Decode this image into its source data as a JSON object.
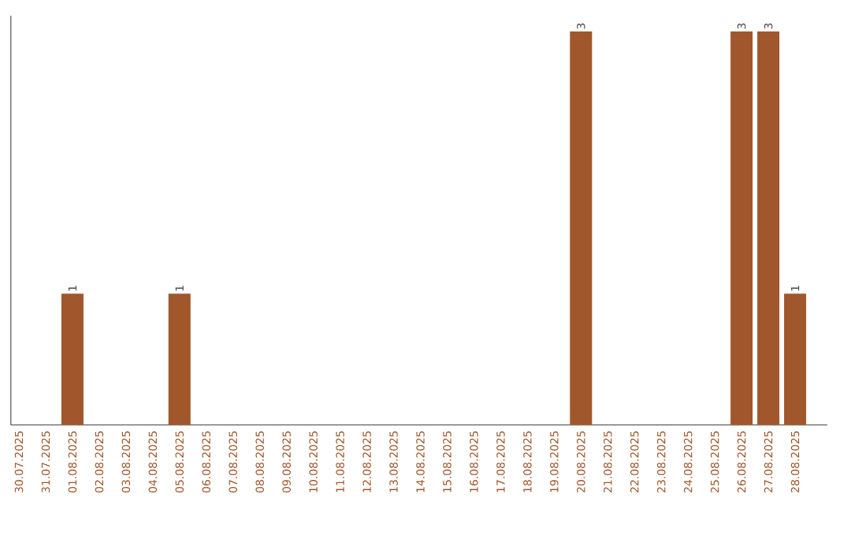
{
  "chart_data": {
    "type": "bar",
    "categories": [
      "30.07.2025",
      "31.07.2025",
      "01.08.2025",
      "02.08.2025",
      "03.08.2025",
      "04.08.2025",
      "05.08.2025",
      "06.08.2025",
      "07.08.2025",
      "08.08.2025",
      "09.08.2025",
      "10.08.2025",
      "11.08.2025",
      "12.08.2025",
      "13.08.2025",
      "14.08.2025",
      "15.08.2025",
      "16.08.2025",
      "17.08.2025",
      "18.08.2025",
      "19.08.2025",
      "20.08.2025",
      "21.08.2025",
      "22.08.2025",
      "23.08.2025",
      "24.08.2025",
      "25.08.2025",
      "26.08.2025",
      "27.08.2025",
      "28.08.2025"
    ],
    "values": [
      0,
      0,
      1,
      0,
      0,
      0,
      1,
      0,
      0,
      0,
      0,
      0,
      0,
      0,
      0,
      0,
      0,
      0,
      0,
      0,
      0,
      3,
      0,
      0,
      0,
      0,
      0,
      3,
      3,
      1
    ],
    "value_labels": [
      null,
      null,
      "1",
      null,
      null,
      null,
      "1",
      null,
      null,
      null,
      null,
      null,
      null,
      null,
      null,
      null,
      null,
      null,
      null,
      null,
      null,
      "3",
      null,
      null,
      null,
      null,
      null,
      "3",
      "3",
      "1"
    ],
    "color": "#a0572b",
    "tick_labels": "x"
  }
}
